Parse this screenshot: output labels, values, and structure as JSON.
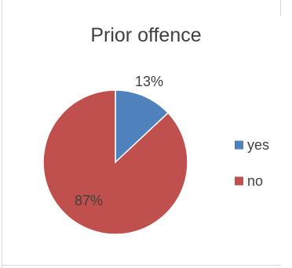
{
  "chart_data": {
    "type": "pie",
    "title": "Prior offence",
    "categories": [
      "yes",
      "no"
    ],
    "values": [
      13,
      87
    ],
    "data_labels": [
      "13%",
      "87%"
    ],
    "colors": [
      "#4f81bd",
      "#c0504d"
    ],
    "legend": {
      "position": "right",
      "entries": [
        "yes",
        "no"
      ]
    }
  }
}
